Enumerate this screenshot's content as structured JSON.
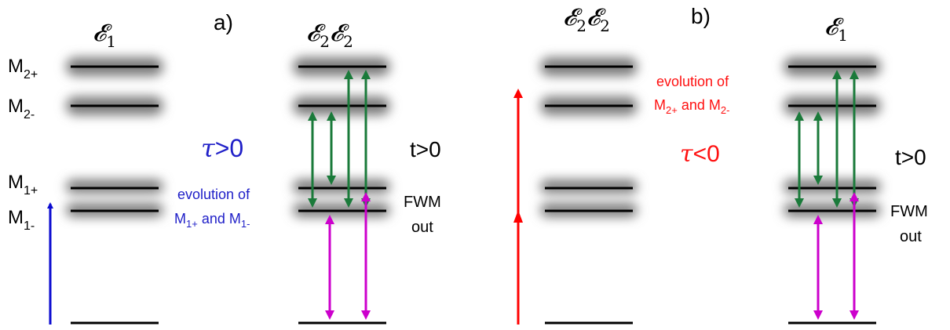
{
  "panels": {
    "a": {
      "label": "a)",
      "excitation_header": "𝓔",
      "excitation_sub": "1",
      "probe_header_1": "𝓔",
      "probe_sub_1": "2",
      "probe_header_2": "𝓔",
      "probe_sub_2": "2",
      "delay_symbol": "τ",
      "delay_relation": ">0",
      "time_text": "t>0",
      "evolution_line1": "evolution of",
      "evolution_line2_parts": [
        "M",
        "1+",
        " and M",
        "1-"
      ],
      "fwm_line1": "FWM",
      "fwm_line2": "out"
    },
    "b": {
      "label": "b)",
      "excitation_header": "𝓔",
      "excitation_sub": "1",
      "probe_header_1": "𝓔",
      "probe_sub_1": "2",
      "probe_header_2": "𝓔",
      "probe_sub_2": "2",
      "delay_symbol": "τ",
      "delay_relation": "<0",
      "time_text": "t>0",
      "evolution_line1": "evolution of",
      "evolution_line2_parts": [
        "M",
        "2+",
        " and M",
        "2-"
      ],
      "fwm_line1": "FWM",
      "fwm_line2": "out"
    }
  },
  "level_labels": [
    {
      "base": "M",
      "sub": "2+"
    },
    {
      "base": "M",
      "sub": "2-"
    },
    {
      "base": "M",
      "sub": "1+"
    },
    {
      "base": "M",
      "sub": "1-"
    }
  ],
  "colors": {
    "blue_arrow": "#0a0ad0",
    "red_arrow": "#ff0000",
    "green_arrow": "#1a7a3a",
    "magenta_arrow": "#cc00cc",
    "blue_text": "#2020c8",
    "red_text": "#ff1010",
    "level_line": "#000000",
    "level_glow": "#7a7a7a"
  }
}
